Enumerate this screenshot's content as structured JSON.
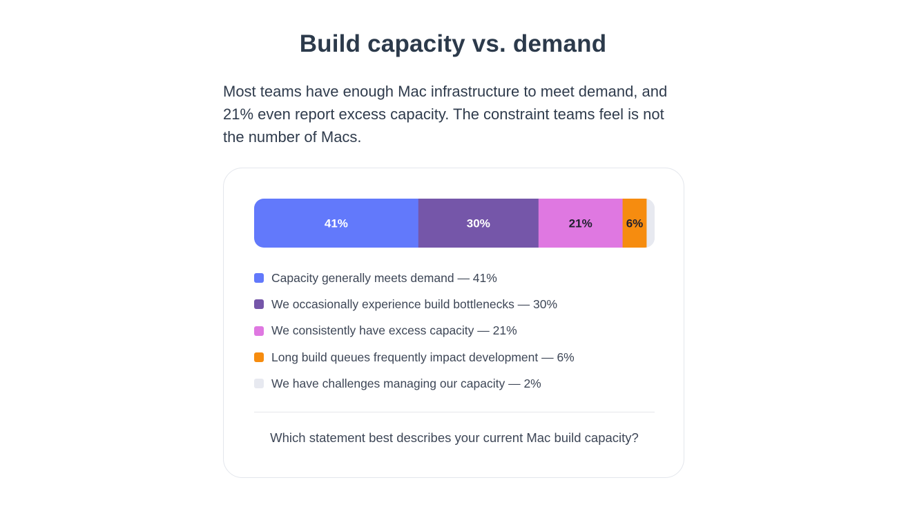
{
  "title": "Build capacity vs. demand",
  "intro": "Most teams have enough Mac infrastructure to meet demand, and 21% even report excess capacity. The constraint teams feel is not the number of Macs.",
  "question": "Which statement best describes your current Mac build capacity?",
  "chart_data": {
    "type": "bar",
    "orientation": "horizontal-stacked-100",
    "title": "",
    "xlabel": "",
    "ylabel": "",
    "unit": "%",
    "series": [
      {
        "name": "Capacity generally meets demand",
        "value": 41,
        "label": "41%",
        "color": "#6279fb",
        "text_color": "#ffffff",
        "legend": "Capacity generally meets demand — 41%"
      },
      {
        "name": "We occasionally experience build bottlenecks",
        "value": 30,
        "label": "30%",
        "color": "#7556a9",
        "text_color": "#ffffff",
        "legend": "We occasionally experience build bottlenecks — 30%"
      },
      {
        "name": "We consistently have excess capacity",
        "value": 21,
        "label": "21%",
        "color": "#df78e1",
        "text_color": "#1f1f2e",
        "legend": "We consistently have excess capacity — 21%"
      },
      {
        "name": "Long build queues frequently impact development",
        "value": 6,
        "label": "6%",
        "color": "#f68c0f",
        "text_color": "#1f1f2e",
        "legend": "Long build queues frequently impact development — 6%"
      },
      {
        "name": "We have challenges managing our capacity",
        "value": 2,
        "label": "",
        "color": "#e7e9f0",
        "text_color": "#1f1f2e",
        "legend": "We have challenges managing our capacity — 2%"
      }
    ],
    "legend_position": "below",
    "grid": false
  }
}
